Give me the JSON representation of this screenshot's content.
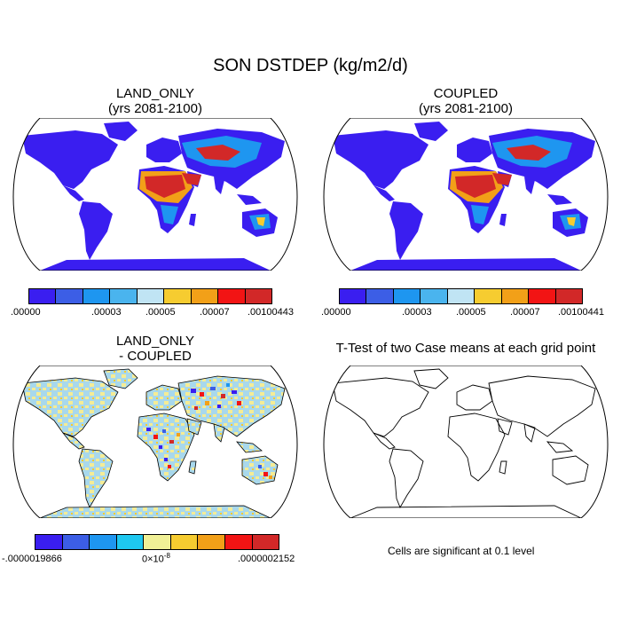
{
  "title": "SON DSTDEP (kg/m2/d)",
  "panels": {
    "land_only": {
      "title_line1": "LAND_ONLY",
      "title_line2": "(yrs 2081-2100)"
    },
    "coupled": {
      "title_line1": "COUPLED",
      "title_line2": "(yrs 2081-2100)"
    },
    "diff": {
      "title_line1": "LAND_ONLY",
      "title_line2": "- COUPLED"
    },
    "ttest": {
      "title": "T-Test of two Case means at each grid point",
      "note": "Cells are significant at 0.1 level"
    }
  },
  "colorbars": {
    "top": {
      "colors": [
        "#3a1ef0",
        "#3c5ee6",
        "#1e96f0",
        "#4ab4ee",
        "#c0e4f4",
        "#f6cc30",
        "#f2a018",
        "#f21414",
        "#d22828"
      ],
      "left_labels": [
        ".00000",
        ".00003",
        ".00005",
        ".00007"
      ],
      "left_end_label": ".00100443",
      "right_labels": [
        ".00000",
        ".00003",
        ".00005",
        ".00007"
      ],
      "right_end_label": ".00100441"
    },
    "diff": {
      "colors": [
        "#3a1ef0",
        "#3c5ee6",
        "#1e96f0",
        "#1ec8f0",
        "#f0f096",
        "#f6cc30",
        "#f2a018",
        "#f21414",
        "#d22828"
      ],
      "min_label": "-.0000019866",
      "mid_label_base": "0×10",
      "mid_label_exp": "-8",
      "max_label": ".0000002152"
    }
  },
  "palette": {
    "ocean": "#ffffff",
    "land_base": "#3a1ef0",
    "dust_mid": "#1e96f0",
    "dust_high": "#d22828",
    "diff_base": "#a8d8ec",
    "diff_yellow": "#f4ec96"
  }
}
